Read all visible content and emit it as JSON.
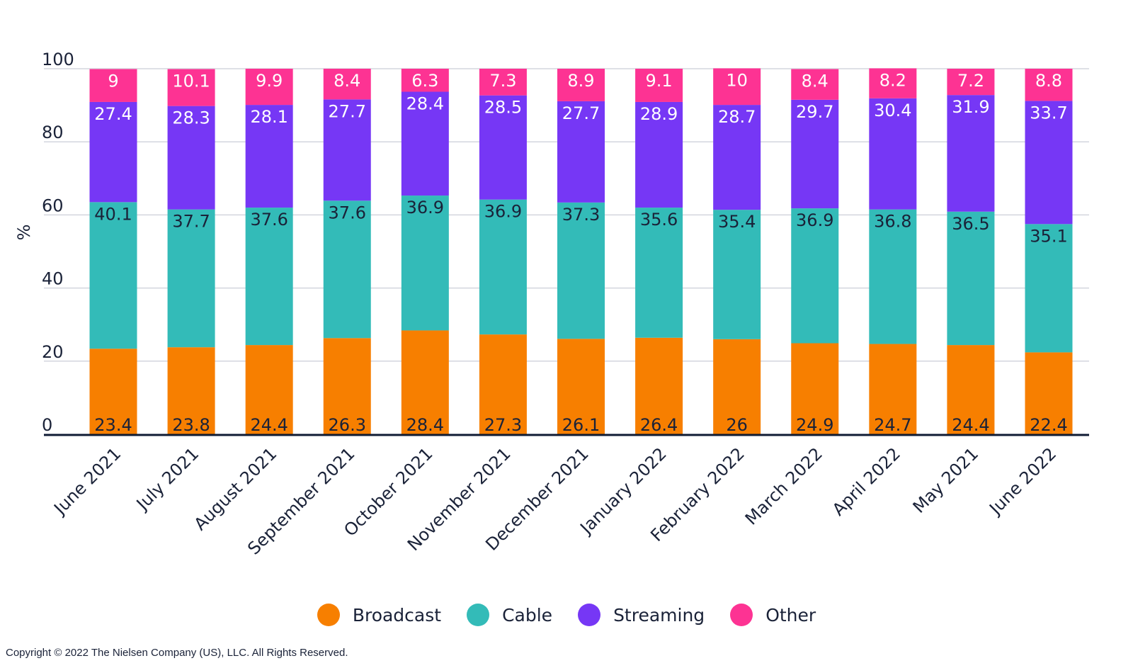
{
  "chart_data": {
    "type": "bar",
    "stacked": true,
    "ylabel": "%",
    "ylim": [
      0,
      100
    ],
    "yticks": [
      0,
      20,
      40,
      60,
      80,
      100
    ],
    "grid": true,
    "legend_position": "bottom",
    "categories": [
      "June 2021",
      "July 2021",
      "August 2021",
      "September 2021",
      "October 2021",
      "November 2021",
      "December 2021",
      "January 2022",
      "February 2022",
      "March 2022",
      "April 2022",
      "May 2021",
      "June 2022"
    ],
    "series": [
      {
        "name": "Broadcast",
        "color": "#f77f00",
        "label_color": "#1a2238",
        "values": [
          23.4,
          23.8,
          24.4,
          26.3,
          28.4,
          27.3,
          26.1,
          26.4,
          26,
          24.9,
          24.7,
          24.4,
          22.4
        ]
      },
      {
        "name": "Cable",
        "color": "#33bbb8",
        "label_color": "#1a2238",
        "values": [
          40.1,
          37.7,
          37.6,
          37.6,
          36.9,
          36.9,
          37.3,
          35.6,
          35.4,
          36.9,
          36.8,
          36.5,
          35.1
        ]
      },
      {
        "name": "Streaming",
        "color": "#7637f5",
        "label_color": "#ffffff",
        "values": [
          27.4,
          28.3,
          28.1,
          27.7,
          28.4,
          28.5,
          27.7,
          28.9,
          28.7,
          29.7,
          30.4,
          31.9,
          33.7
        ]
      },
      {
        "name": "Other",
        "color": "#fd3393",
        "label_color": "#ffffff",
        "values": [
          9,
          10.1,
          9.9,
          8.4,
          6.3,
          7.3,
          8.9,
          9.1,
          10,
          8.4,
          8.2,
          7.2,
          8.8
        ]
      }
    ]
  },
  "footer": {
    "copyright": "Copyright © 2022 The Nielsen Company (US), LLC. All Rights Reserved."
  }
}
